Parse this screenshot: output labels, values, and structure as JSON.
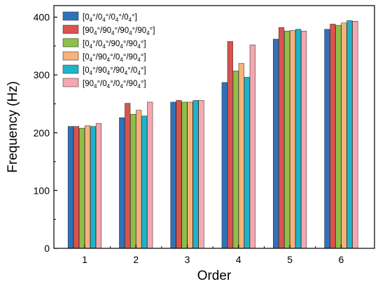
{
  "chart_data": {
    "type": "bar",
    "title": "",
    "xlabel": "Order",
    "ylabel": "Frequency (Hz)",
    "categories": [
      "1",
      "2",
      "3",
      "4",
      "5",
      "6"
    ],
    "ylim": [
      0,
      420
    ],
    "yticks": [
      0,
      100,
      200,
      300,
      400
    ],
    "legend_position": "top-left",
    "series": [
      {
        "name": "[0₄°/0₄°/0₄°/0₄°]",
        "color": "#2f72ba",
        "values": [
          211,
          226,
          253,
          287,
          362,
          379
        ]
      },
      {
        "name": "[90₄°/90₄°/90₄°/90₄°]",
        "color": "#d9534f",
        "values": [
          211,
          251,
          256,
          358,
          382,
          388
        ]
      },
      {
        "name": "[0₄°/0₄°/90₄°/90₄°]",
        "color": "#8fbf4a",
        "values": [
          208,
          232,
          253,
          307,
          376,
          386
        ]
      },
      {
        "name": "[0₄°/90₄°/0₄°/90₄°]",
        "color": "#f5b27a",
        "values": [
          212,
          239,
          253,
          320,
          377,
          390
        ]
      },
      {
        "name": "[0₄°/90₄°/90₄°/0₄°]",
        "color": "#1fb3c9",
        "values": [
          211,
          229,
          256,
          296,
          379,
          394
        ]
      },
      {
        "name": "[90₄°/0₄°/0₄°/90₄°]",
        "color": "#f4a8b0",
        "values": [
          216,
          253,
          256,
          352,
          376,
          393
        ]
      }
    ],
    "legend_labels": [
      [
        [
          "[0",
          "4",
          "°/0",
          "4",
          "°/0",
          "4",
          "°/0",
          "4",
          "°]"
        ]
      ],
      [
        [
          "[90",
          "4",
          "°/90",
          "4",
          "°/90",
          "4",
          "°/90",
          "4",
          "°]"
        ]
      ],
      [
        [
          "[0",
          "4",
          "°/0",
          "4",
          "°/90",
          "4",
          "°/90",
          "4",
          "°]"
        ]
      ],
      [
        [
          "[0",
          "4",
          "°/90",
          "4",
          "°/0",
          "4",
          "°/90",
          "4",
          "°]"
        ]
      ],
      [
        [
          "[0",
          "4",
          "°/90",
          "4",
          "°/90",
          "4",
          "°/0",
          "4",
          "°]"
        ]
      ],
      [
        [
          "[90",
          "4",
          "°/0",
          "4",
          "°/0",
          "4",
          "°/90",
          "4",
          "°]"
        ]
      ]
    ]
  }
}
